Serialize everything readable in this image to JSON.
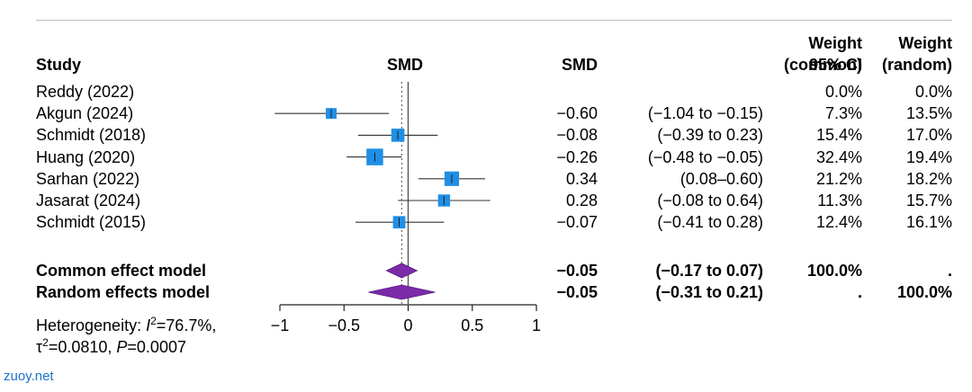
{
  "headers": {
    "study": "Study",
    "plot_label": "SMD",
    "smd": "SMD",
    "ci": "95% CI",
    "weight_common_line1": "Weight",
    "weight_common_line2": "(common)",
    "weight_random_line1": "Weight",
    "weight_random_line2": "(random)"
  },
  "chart_data": {
    "type": "forest",
    "xlim": [
      -1,
      1
    ],
    "xticks": [
      {
        "value": -1,
        "label": "−1"
      },
      {
        "value": -0.5,
        "label": "−0.5"
      },
      {
        "value": 0,
        "label": "0"
      },
      {
        "value": 0.5,
        "label": "0.5"
      },
      {
        "value": 1,
        "label": "1"
      }
    ],
    "reference_line": 0,
    "common_estimate_line": -0.05,
    "marker_color": "#1f8fe5",
    "diamond_color": "#7b2aa8",
    "studies": [
      {
        "name": "Reddy (2022)",
        "smd": null,
        "lower": null,
        "upper": null,
        "smd_label": "",
        "ci_label": "",
        "w_common": "0.0%",
        "w_random": "0.0%",
        "weight": 0
      },
      {
        "name": "Akgun (2024)",
        "smd": -0.6,
        "lower": -1.04,
        "upper": -0.15,
        "smd_label": "−0.60",
        "ci_label": "(−1.04 to −0.15)",
        "w_common": "7.3%",
        "w_random": "13.5%",
        "weight": 7.3
      },
      {
        "name": "Schmidt (2018)",
        "smd": -0.08,
        "lower": -0.39,
        "upper": 0.23,
        "smd_label": "−0.08",
        "ci_label": "(−0.39 to 0.23)",
        "w_common": "15.4%",
        "w_random": "17.0%",
        "weight": 15.4
      },
      {
        "name": "Huang (2020)",
        "smd": -0.26,
        "lower": -0.48,
        "upper": -0.05,
        "smd_label": "−0.26",
        "ci_label": "(−0.48 to −0.05)",
        "w_common": "32.4%",
        "w_random": "19.4%",
        "weight": 32.4
      },
      {
        "name": "Sarhan (2022)",
        "smd": 0.34,
        "lower": 0.08,
        "upper": 0.6,
        "smd_label": "0.34",
        "ci_label": "(0.08–0.60)",
        "w_common": "21.2%",
        "w_random": "18.2%",
        "weight": 21.2
      },
      {
        "name": "Jasarat (2024)",
        "smd": 0.28,
        "lower": -0.08,
        "upper": 0.64,
        "smd_label": "0.28",
        "ci_label": "(−0.08 to 0.64)",
        "w_common": "11.3%",
        "w_random": "15.7%",
        "weight": 11.3
      },
      {
        "name": "Schmidt (2015)",
        "smd": -0.07,
        "lower": -0.41,
        "upper": 0.28,
        "smd_label": "−0.07",
        "ci_label": "(−0.41 to 0.28)",
        "w_common": "12.4%",
        "w_random": "16.1%",
        "weight": 12.4
      }
    ],
    "summaries": [
      {
        "name": "Common effect model",
        "smd": -0.05,
        "lower": -0.17,
        "upper": 0.07,
        "smd_label": "−0.05",
        "ci_label": "(−0.17 to 0.07)",
        "w_common": "100.0%",
        "w_random": "."
      },
      {
        "name": "Random effects model",
        "smd": -0.05,
        "lower": -0.31,
        "upper": 0.21,
        "smd_label": "−0.05",
        "ci_label": "(−0.31 to 0.21)",
        "w_common": ".",
        "w_random": "100.0%"
      }
    ]
  },
  "heterogeneity": {
    "prefix": "Heterogeneity: ",
    "i_symbol": "I",
    "i_value": "=76.7%,",
    "tau_symbol": "τ",
    "tau_value": "=0.0810, ",
    "p_symbol": "P",
    "p_value": "=0.0007"
  },
  "watermark": "zuoy.net"
}
